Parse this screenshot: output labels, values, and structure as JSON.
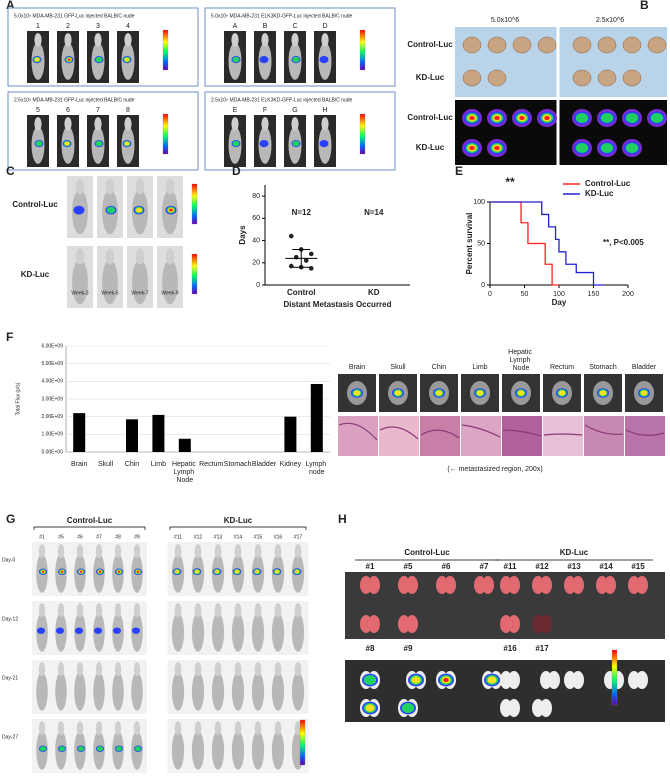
{
  "panels": {
    "A": {
      "label": "A",
      "groups": [
        {
          "title": "5.0x10⁶ MDA-MB-231 GFP-Luc injected BALB/C nude",
          "mice": [
            "1",
            "2",
            "3",
            "4"
          ]
        },
        {
          "title": "5.0x10⁶ MDA-MB-231 ELK3KD-GFP-Luc injected BALB/C nude",
          "mice": [
            "A",
            "B",
            "C",
            "D"
          ]
        },
        {
          "title": "2.5x10⁶ MDA-MB-231 GFP-Luc injected BALB/C nude",
          "mice": [
            "5",
            "6",
            "7",
            "8"
          ]
        },
        {
          "title": "2.5x10⁶ MDA-MB-231 ELK3KD-GFP-Luc injected BALB/C nude",
          "mice": [
            "E",
            "F",
            "G",
            "H"
          ]
        }
      ]
    },
    "B": {
      "label": "B",
      "columns": [
        "5.0x10^6",
        "2.5x10^6"
      ],
      "rows": [
        "Control-Luc",
        "KD-Luc",
        "Control-Luc",
        "KD-Luc"
      ]
    },
    "C": {
      "label": "C",
      "rows": [
        "Control-Luc",
        "KD-Luc"
      ],
      "weeks": [
        "Week-3",
        "Week-5",
        "Week-7",
        "Week-9"
      ]
    },
    "D": {
      "label": "D"
    },
    "E": {
      "label": "E"
    },
    "F": {
      "label": "F",
      "organs": [
        "Brain",
        "Skull",
        "Chin",
        "Limb",
        "Hepatic Lymph Node",
        "Rectum",
        "Stomach",
        "Bladder"
      ],
      "caption": "(← metastasized region, 200x)"
    },
    "G": {
      "label": "G",
      "groups": [
        {
          "title": "Control-Luc",
          "mice": [
            "#1",
            "#5",
            "#6",
            "#7",
            "#8",
            "#9"
          ]
        },
        {
          "title": "KD-Luc",
          "mice": [
            "#11",
            "#12",
            "#13",
            "#14",
            "#15",
            "#16",
            "#17"
          ]
        }
      ],
      "days": [
        "Day-0",
        "Day-12",
        "Day-21",
        "Day-27"
      ]
    },
    "H": {
      "label": "H",
      "groups": [
        {
          "title": "Control-Luc",
          "top": [
            "#1",
            "#5",
            "#6",
            "#7"
          ],
          "bottom": [
            "#8",
            "#9"
          ]
        },
        {
          "title": "KD-Luc",
          "top": [
            "#11",
            "#12",
            "#13",
            "#14",
            "#15"
          ],
          "bottom": [
            "#16",
            "#17"
          ]
        }
      ]
    }
  },
  "chart_data": [
    {
      "type": "scatter",
      "ylabel": "Days",
      "xlabel": "Distant Metastasis Occurred",
      "categories": [
        "Control",
        "KD"
      ],
      "annotations": [
        "N=12",
        "N=14"
      ],
      "points": [
        [
          44,
          32,
          28,
          25,
          22,
          17,
          16,
          15
        ],
        []
      ],
      "mean": [
        24,
        null
      ],
      "sd": [
        8,
        null
      ],
      "color": "#222222",
      "ylim": [
        0,
        90
      ],
      "yticks": [
        0,
        20,
        40,
        60,
        80
      ]
    },
    {
      "type": "line",
      "ylabel": "Percent survival",
      "xlabel": "Day",
      "annotations": [
        "**",
        "**, P<0.005"
      ],
      "series": [
        {
          "name": "Control-Luc",
          "color": "#ff2020",
          "x": [
            0,
            45,
            45,
            55,
            55,
            80,
            80,
            90,
            90,
            100
          ],
          "values": [
            100,
            100,
            75,
            75,
            50,
            50,
            25,
            25,
            0,
            0
          ]
        },
        {
          "name": "KD-Luc",
          "color": "#2222cc",
          "x": [
            0,
            75,
            75,
            85,
            85,
            95,
            95,
            100,
            100,
            110,
            110,
            125,
            125,
            150,
            150,
            165
          ],
          "values": [
            100,
            100,
            85,
            85,
            70,
            70,
            55,
            55,
            40,
            40,
            25,
            25,
            15,
            15,
            0,
            0
          ]
        }
      ],
      "xlim": [
        0,
        200
      ],
      "xticks": [
        0,
        50,
        100,
        150,
        200
      ],
      "ylim": [
        0,
        100
      ],
      "yticks": [
        0,
        50,
        100
      ]
    },
    {
      "type": "bar",
      "ylabel": "Total Flux (p/s)",
      "color": "#000000",
      "categories": [
        "Brain",
        "Skull",
        "Chin",
        "Limb",
        "Hepatic Lymph Node",
        "Rectum",
        "Stomach",
        "Bladder",
        "Kidney",
        "Lymph node"
      ],
      "values": [
        2200000000,
        0,
        1850000000,
        2100000000,
        750000000,
        0,
        0,
        0,
        2000000000,
        3850000000
      ],
      "ylim": [
        0,
        6000000000
      ],
      "yticks": [
        {
          "value": 0,
          "label": "0.00E+00"
        },
        {
          "value": 1000000000,
          "label": "1.00E+09"
        },
        {
          "value": 2000000000,
          "label": "2.00E+09"
        },
        {
          "value": 3000000000,
          "label": "3.00E+09"
        },
        {
          "value": 4000000000,
          "label": "4.00E+09"
        },
        {
          "value": 5000000000,
          "label": "5.00E+09"
        },
        {
          "value": 6000000000,
          "label": "6.00E+09"
        }
      ]
    }
  ]
}
